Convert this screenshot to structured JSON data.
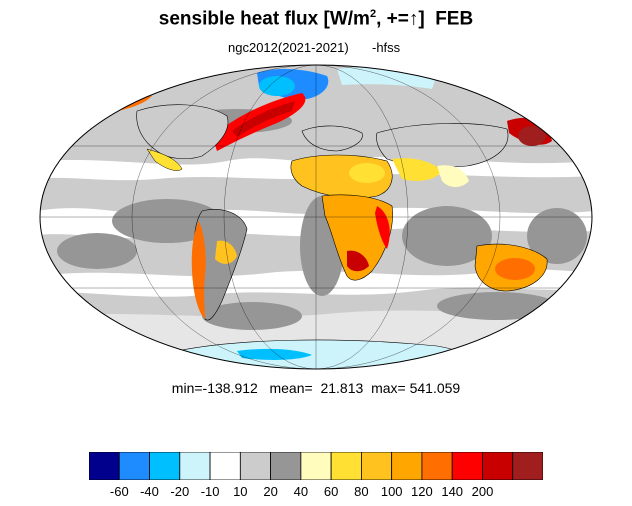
{
  "title": {
    "main": "sensible heat flux [W/m",
    "superscript": "2",
    "after_sup": ", +=",
    "arrow": "↑",
    "bracket": "]",
    "month": "FEB"
  },
  "subtitle": {
    "case": "ngc2012(2021-2021)",
    "variable": "-hfss"
  },
  "stats": {
    "min_label": "min=",
    "min": "-138.912",
    "mean_label": "mean=",
    "mean": "21.813",
    "max_label": "max=",
    "max": "541.059"
  },
  "colorbar": {
    "colors": [
      "#00008c",
      "#1e8cff",
      "#00bfff",
      "#cdf3fb",
      "#ffffff",
      "#cccccc",
      "#969696",
      "#fffcbe",
      "#ffe033",
      "#ffc21e",
      "#ffa600",
      "#ff6e00",
      "#ff0000",
      "#c80000",
      "#a01e1e"
    ],
    "labels": [
      "-60",
      "-40",
      "-20",
      "-10",
      "10",
      "20",
      "40",
      "60",
      "80",
      "100",
      "120",
      "140",
      "200"
    ]
  },
  "map": {
    "projection": "mollweide",
    "ocean_light": "#cccccc",
    "ocean_dark": "#969696",
    "ocean_white": "#ffffff"
  }
}
